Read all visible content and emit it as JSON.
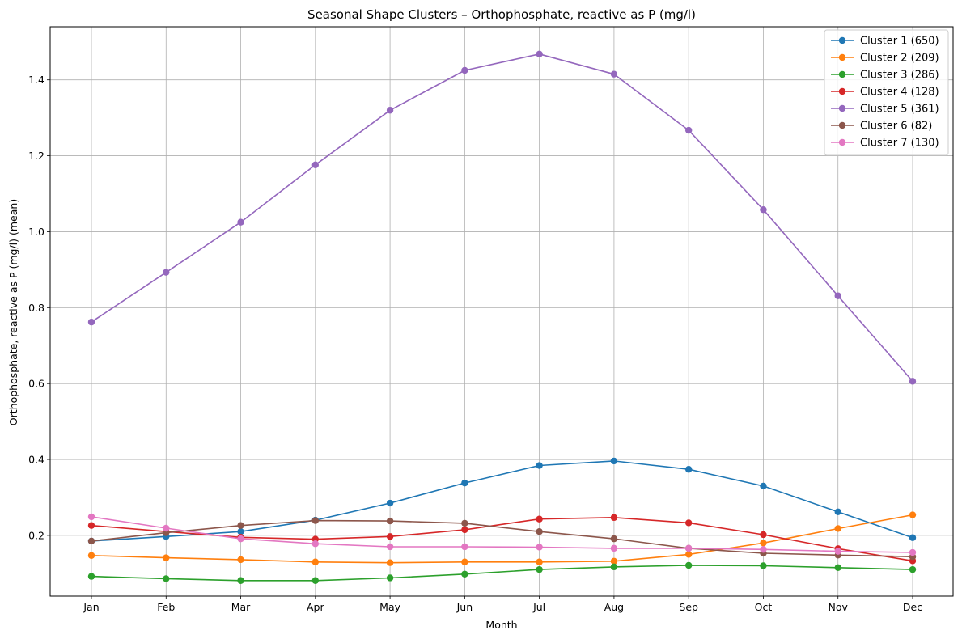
{
  "chart_data": {
    "type": "line",
    "title": "Seasonal Shape Clusters – Orthophosphate, reactive as P (mg/l)",
    "xlabel": "Month",
    "ylabel": "Orthophosphate, reactive as P (mg/l) (mean)",
    "categories": [
      "Jan",
      "Feb",
      "Mar",
      "Apr",
      "May",
      "Jun",
      "Jul",
      "Aug",
      "Sep",
      "Oct",
      "Nov",
      "Dec"
    ],
    "ylim": [
      0.04,
      1.54
    ],
    "yticks": [
      0.2,
      0.4,
      0.6,
      0.8,
      1.0,
      1.2,
      1.4
    ],
    "ytick_labels": [
      "0.2",
      "0.4",
      "0.6",
      "0.8",
      "1.0",
      "1.2",
      "1.4"
    ],
    "grid": true,
    "legend_position": "top-right",
    "series": [
      {
        "name": "Cluster 1 (650)",
        "color": "#1f77b4",
        "values": [
          0.185,
          0.197,
          0.21,
          0.24,
          0.285,
          0.338,
          0.384,
          0.396,
          0.374,
          0.33,
          0.262,
          0.194
        ]
      },
      {
        "name": "Cluster 2 (209)",
        "color": "#ff7f0e",
        "values": [
          0.147,
          0.141,
          0.136,
          0.13,
          0.128,
          0.13,
          0.13,
          0.132,
          0.15,
          0.18,
          0.218,
          0.254
        ]
      },
      {
        "name": "Cluster 3 (286)",
        "color": "#2ca02c",
        "values": [
          0.092,
          0.086,
          0.081,
          0.081,
          0.088,
          0.098,
          0.11,
          0.117,
          0.121,
          0.12,
          0.115,
          0.11
        ]
      },
      {
        "name": "Cluster 4 (128)",
        "color": "#d62728",
        "values": [
          0.226,
          0.21,
          0.195,
          0.19,
          0.197,
          0.215,
          0.243,
          0.247,
          0.233,
          0.202,
          0.165,
          0.133
        ]
      },
      {
        "name": "Cluster 5 (361)",
        "color": "#9467bd",
        "values": [
          0.762,
          0.893,
          1.025,
          1.176,
          1.32,
          1.425,
          1.468,
          1.415,
          1.267,
          1.058,
          0.831,
          0.606
        ]
      },
      {
        "name": "Cluster 6 (82)",
        "color": "#8c564b",
        "values": [
          0.185,
          0.207,
          0.226,
          0.239,
          0.238,
          0.232,
          0.21,
          0.191,
          0.166,
          0.153,
          0.148,
          0.144
        ]
      },
      {
        "name": "Cluster 7 (130)",
        "color": "#e377c2",
        "values": [
          0.249,
          0.219,
          0.191,
          0.178,
          0.17,
          0.17,
          0.169,
          0.166,
          0.166,
          0.163,
          0.158,
          0.155
        ]
      }
    ]
  }
}
